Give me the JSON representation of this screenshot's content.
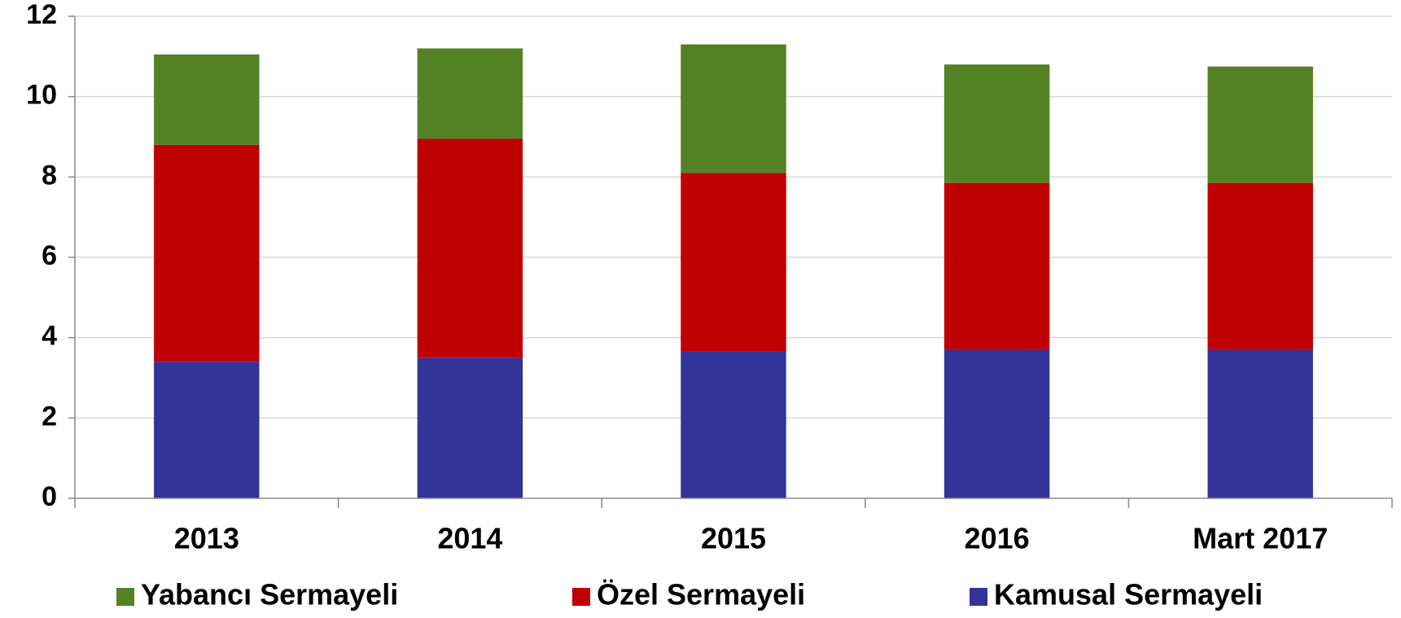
{
  "chart_data": {
    "type": "stacked_bar",
    "categories": [
      "2013",
      "2014",
      "2015",
      "2016",
      "Mart 2017"
    ],
    "series": [
      {
        "name": "Kamusal Sermayeli",
        "color": "#333399",
        "values": [
          3.4,
          3.5,
          3.65,
          3.7,
          3.7
        ]
      },
      {
        "name": "Özel Sermayeli",
        "color": "#c00000",
        "values": [
          5.4,
          5.45,
          4.45,
          4.15,
          4.15
        ]
      },
      {
        "name": "Yabancı Sermayeli",
        "color": "#548224",
        "values": [
          2.25,
          2.25,
          3.2,
          2.95,
          2.9
        ]
      }
    ],
    "ylim": [
      0,
      12
    ],
    "yticks": [
      0,
      2,
      4,
      6,
      8,
      10,
      12
    ],
    "grid": true
  }
}
